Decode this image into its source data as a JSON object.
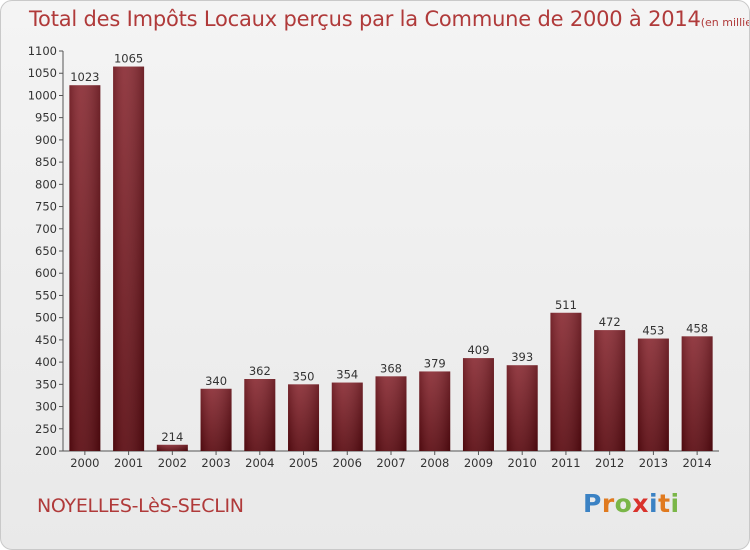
{
  "chart_data": {
    "type": "bar",
    "title": "Total des Impôts Locaux perçus par la Commune de 2000 à 2014",
    "unit_label": "(en milliers d'€)",
    "xlabel": "",
    "ylabel": "",
    "categories": [
      "2000",
      "2001",
      "2002",
      "2003",
      "2004",
      "2005",
      "2006",
      "2007",
      "2008",
      "2009",
      "2010",
      "2011",
      "2012",
      "2013",
      "2014"
    ],
    "values": [
      1023,
      1065,
      214,
      340,
      362,
      350,
      354,
      368,
      379,
      409,
      393,
      511,
      472,
      453,
      458
    ],
    "ylim": [
      200,
      1100
    ],
    "yticks": [
      200,
      250,
      300,
      350,
      400,
      450,
      500,
      550,
      600,
      650,
      700,
      750,
      800,
      850,
      900,
      950,
      1000,
      1050,
      1100
    ],
    "grid": false,
    "bar_color_top": "#8a2c34",
    "bar_color_bottom": "#5a0a10"
  },
  "commune_name": "NOYELLES-LèS-SECLIN",
  "logo": {
    "letters": [
      "P",
      "r",
      "o",
      "x",
      "i",
      "t",
      "i"
    ],
    "colors": [
      "#3b82c4",
      "#e07a1f",
      "#7ab648",
      "#d9322c",
      "#3b82c4",
      "#e07a1f",
      "#7ab648"
    ]
  }
}
